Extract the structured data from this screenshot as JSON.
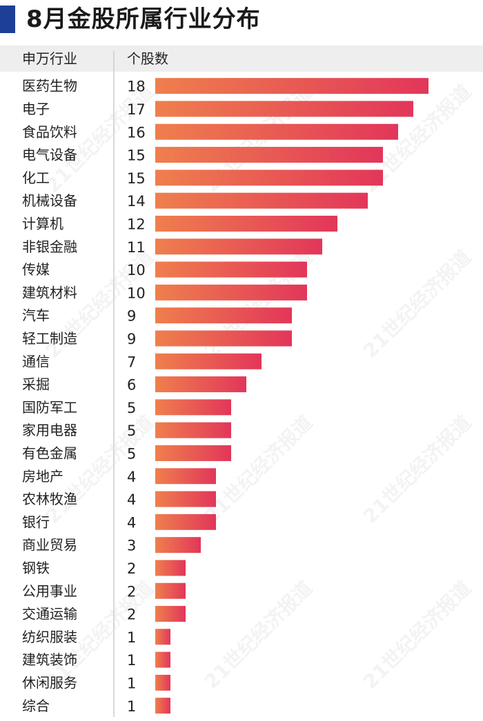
{
  "title": "8月金股所属行业分布",
  "watermark": "21世纪经济报道",
  "colors": {
    "accent_bar": "#1f3f96",
    "bar_start": "#ef7f4d",
    "bar_end": "#e2365a"
  },
  "chart_data": {
    "type": "bar",
    "orientation": "horizontal",
    "title": "8月金股所属行业分布",
    "column_headers": [
      "申万行业",
      "个股数"
    ],
    "categories": [
      "医药生物",
      "电子",
      "食品饮料",
      "电气设备",
      "化工",
      "机械设备",
      "计算机",
      "非银金融",
      "传媒",
      "建筑材料",
      "汽车",
      "轻工制造",
      "通信",
      "采掘",
      "国防军工",
      "家用电器",
      "有色金属",
      "房地产",
      "农林牧渔",
      "银行",
      "商业贸易",
      "钢铁",
      "公用事业",
      "交通运输",
      "纺织服装",
      "建筑装饰",
      "休闲服务",
      "综合"
    ],
    "values": [
      18,
      17,
      16,
      15,
      15,
      14,
      12,
      11,
      10,
      10,
      9,
      9,
      7,
      6,
      5,
      5,
      5,
      4,
      4,
      4,
      3,
      2,
      2,
      2,
      1,
      1,
      1,
      1
    ],
    "xlim": [
      0,
      18
    ],
    "grid": false,
    "legend": "none"
  }
}
